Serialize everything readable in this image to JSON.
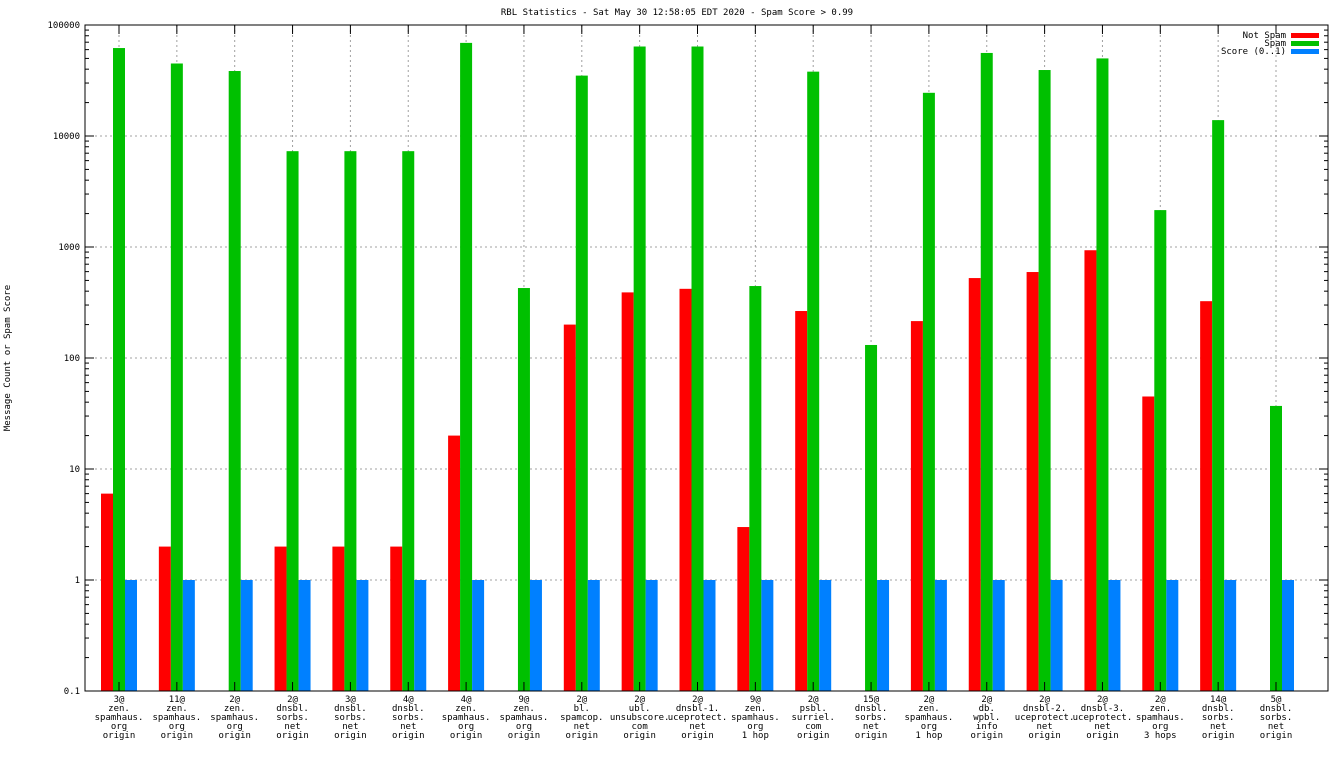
{
  "chart_data": {
    "type": "bar",
    "title": "RBL Statistics - Sat May 30 12:58:05 EDT 2020 - Spam Score > 0.99",
    "xlabel": "",
    "ylabel": "Message Count or Spam Score",
    "yscale": "log",
    "ylim": [
      0.1,
      100000
    ],
    "yticks": [
      "0.1",
      "1",
      "10",
      "100",
      "1000",
      "10000",
      "100000"
    ],
    "grid": true,
    "legend_position": "top-right",
    "categories": [
      [
        "3@",
        "zen.",
        "spamhaus.",
        "org",
        "origin"
      ],
      [
        "11@",
        "zen.",
        "spamhaus.",
        "org",
        "origin"
      ],
      [
        "2@",
        "zen.",
        "spamhaus.",
        "org",
        "origin"
      ],
      [
        "2@",
        "dnsbl.",
        "sorbs.",
        "net",
        "origin"
      ],
      [
        "3@",
        "dnsbl.",
        "sorbs.",
        "net",
        "origin"
      ],
      [
        "4@",
        "dnsbl.",
        "sorbs.",
        "net",
        "origin"
      ],
      [
        "4@",
        "zen.",
        "spamhaus.",
        "org",
        "origin"
      ],
      [
        "9@",
        "zen.",
        "spamhaus.",
        "org",
        "origin"
      ],
      [
        "2@",
        "bl.",
        "spamcop.",
        "net",
        "origin"
      ],
      [
        "2@",
        "ubl.",
        "unsubscore.",
        "com",
        "origin"
      ],
      [
        "2@",
        "dnsbl-1.",
        "uceprotect.",
        "net",
        "origin"
      ],
      [
        "9@",
        "zen.",
        "spamhaus.",
        "org",
        "1 hop"
      ],
      [
        "2@",
        "psbl.",
        "surriel.",
        "com",
        "origin"
      ],
      [
        "15@",
        "dnsbl.",
        "sorbs.",
        "net",
        "origin"
      ],
      [
        "2@",
        "zen.",
        "spamhaus.",
        "org",
        "1 hop"
      ],
      [
        "2@",
        "db.",
        "wpbl.",
        "info",
        "origin"
      ],
      [
        "2@",
        "dnsbl-2.",
        "uceprotect.",
        "net",
        "origin"
      ],
      [
        "2@",
        "dnsbl-3.",
        "uceprotect.",
        "net",
        "origin"
      ],
      [
        "2@",
        "zen.",
        "spamhaus.",
        "org",
        "3 hops"
      ],
      [
        "14@",
        "dnsbl.",
        "sorbs.",
        "net",
        "origin"
      ],
      [
        "5@",
        "dnsbl.",
        "sorbs.",
        "net",
        "origin"
      ]
    ],
    "series": [
      {
        "name": "Not Spam",
        "color": "#ff0000",
        "values": [
          6,
          2,
          null,
          2,
          2,
          2,
          20,
          null,
          200,
          390,
          420,
          3,
          265,
          null,
          215,
          525,
          595,
          935,
          45,
          325,
          null
        ]
      },
      {
        "name": "Spam",
        "color": "#00c000",
        "values": [
          62000,
          45000,
          38500,
          7300,
          7300,
          7300,
          69000,
          427,
          35000,
          64000,
          64000,
          445,
          38000,
          131,
          24500,
          56000,
          39300,
          50000,
          2150,
          13900,
          37
        ]
      },
      {
        "name": "Score (0..1)",
        "color": "#0080ff",
        "values": [
          1,
          1,
          1,
          1,
          1,
          1,
          1,
          1,
          1,
          1,
          1,
          1,
          1,
          1,
          1,
          1,
          1,
          1,
          1,
          1,
          1
        ]
      }
    ]
  }
}
